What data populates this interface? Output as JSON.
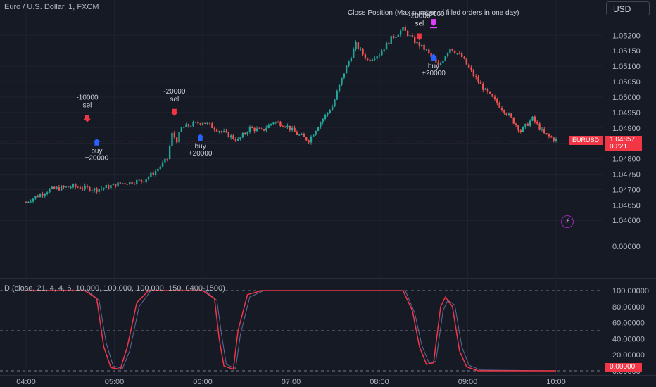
{
  "header": {
    "symbol_title": "Euro / U.S. Dollar, 1, FXCM"
  },
  "currency": "USD",
  "annotation": "Close Position (Max number of filled orders in one day)",
  "current_price": {
    "symbol": "EURUSD",
    "price": "1.04857",
    "countdown": "00:21"
  },
  "indicator": {
    "legend": "D (close, 21, 4, 4, 6, 10,000, 100,000, 100,000, 150, 0400-1500)",
    "current_value": "0.00000"
  },
  "middle_pane": {
    "label": "0.00000"
  },
  "colors": {
    "background": "#161a25",
    "up_candle": "#26a69a",
    "down_candle": "#ef5350",
    "sell_marker": "#f23645",
    "buy_marker": "#2962ff",
    "close_marker": "#e040fb",
    "osc_main": "#f23645",
    "osc_signal": "#5b6b9a"
  },
  "chart_data": [
    {
      "type": "candlestick",
      "x_ticks": [
        "04:00",
        "05:00",
        "06:00",
        "07:00",
        "08:00",
        "09:00",
        "10:00"
      ],
      "y_ticks": [
        "1.04600",
        "1.04650",
        "1.04700",
        "1.04750",
        "1.04800",
        "1.04850",
        "1.04900",
        "1.04950",
        "1.05000",
        "1.05050",
        "1.05100",
        "1.05150",
        "1.05200"
      ],
      "ylim": [
        1.0458,
        1.0526
      ],
      "close_path": [
        [
          0,
          1.0466
        ],
        [
          10,
          1.047
        ],
        [
          20,
          1.0471
        ],
        [
          30,
          1.047
        ],
        [
          40,
          1.0472
        ],
        [
          50,
          1.0473
        ],
        [
          55,
          1.0476
        ],
        [
          60,
          1.048
        ],
        [
          62,
          1.0488
        ],
        [
          64,
          1.0486
        ],
        [
          66,
          1.049
        ],
        [
          70,
          1.0491
        ],
        [
          75,
          1.0492
        ],
        [
          80,
          1.049
        ],
        [
          85,
          1.0488
        ],
        [
          90,
          1.0486
        ],
        [
          95,
          1.049
        ],
        [
          100,
          1.0489
        ],
        [
          105,
          1.0492
        ],
        [
          110,
          1.0491
        ],
        [
          115,
          1.0488
        ],
        [
          120,
          1.0486
        ],
        [
          125,
          1.0492
        ],
        [
          130,
          1.0497
        ],
        [
          135,
          1.0508
        ],
        [
          140,
          1.0517
        ],
        [
          145,
          1.0512
        ],
        [
          150,
          1.0514
        ],
        [
          155,
          1.0519
        ],
        [
          160,
          1.0522
        ],
        [
          165,
          1.0518
        ],
        [
          170,
          1.0515
        ],
        [
          175,
          1.051
        ],
        [
          180,
          1.0516
        ],
        [
          185,
          1.0513
        ],
        [
          190,
          1.0507
        ],
        [
          195,
          1.0502
        ],
        [
          200,
          1.0498
        ],
        [
          205,
          1.0494
        ],
        [
          210,
          1.0489
        ],
        [
          215,
          1.0493
        ],
        [
          220,
          1.0488
        ],
        [
          225,
          1.0486
        ]
      ],
      "trades": [
        {
          "minute": 26,
          "price": 1.04905,
          "side": "sell",
          "qty": "-10000",
          "label": "sel"
        },
        {
          "minute": 30,
          "price": 1.04875,
          "side": "buy",
          "qty": "+20000",
          "label": "buy"
        },
        {
          "minute": 63,
          "price": 1.04925,
          "side": "sell",
          "qty": "-20000",
          "label": "sel"
        },
        {
          "minute": 74,
          "price": 1.0489,
          "side": "buy",
          "qty": "+20000",
          "label": "buy"
        },
        {
          "minute": 167,
          "price": 1.0517,
          "side": "sell",
          "qty": "-20000",
          "label": "sel"
        },
        {
          "minute": 173,
          "price": 1.0515,
          "side": "buy",
          "qty": "+20000",
          "label": "buy"
        },
        {
          "minute": 173,
          "price": 1.0523,
          "side": "close",
          "qty": "-10000",
          "label": ""
        }
      ],
      "current_price": 1.04857
    },
    {
      "type": "line",
      "y_ticks": [
        "100.00000",
        "80.00000",
        "60.00000",
        "40.00000",
        "20.00000",
        "0.00000"
      ],
      "ylim": [
        0,
        100
      ],
      "dashed_levels": [
        100,
        50,
        0
      ],
      "series": [
        {
          "points": [
            [
              0,
              100
            ],
            [
              25,
              100
            ],
            [
              30,
              90
            ],
            [
              33,
              30
            ],
            [
              36,
              4
            ],
            [
              40,
              2
            ],
            [
              43,
              30
            ],
            [
              47,
              85
            ],
            [
              52,
              100
            ],
            [
              75,
              100
            ],
            [
              80,
              90
            ],
            [
              82,
              40
            ],
            [
              84,
              6
            ],
            [
              88,
              2
            ],
            [
              90,
              50
            ],
            [
              94,
              95
            ],
            [
              100,
              100
            ],
            [
              160,
              100
            ],
            [
              164,
              75
            ],
            [
              167,
              30
            ],
            [
              170,
              8
            ],
            [
              173,
              10
            ],
            [
              176,
              80
            ],
            [
              178,
              92
            ],
            [
              181,
              80
            ],
            [
              184,
              25
            ],
            [
              187,
              5
            ],
            [
              192,
              0
            ],
            [
              225,
              0
            ]
          ]
        },
        {
          "points": [
            [
              0,
              100
            ],
            [
              26,
              100
            ],
            [
              31,
              88
            ],
            [
              34,
              35
            ],
            [
              37,
              6
            ],
            [
              41,
              3
            ],
            [
              44,
              25
            ],
            [
              48,
              80
            ],
            [
              53,
              100
            ],
            [
              76,
              100
            ],
            [
              81,
              88
            ],
            [
              83,
              45
            ],
            [
              85,
              8
            ],
            [
              89,
              3
            ],
            [
              91,
              45
            ],
            [
              95,
              92
            ],
            [
              101,
              100
            ],
            [
              161,
              100
            ],
            [
              165,
              72
            ],
            [
              168,
              32
            ],
            [
              171,
              10
            ],
            [
              174,
              12
            ],
            [
              177,
              75
            ],
            [
              179,
              88
            ],
            [
              182,
              82
            ],
            [
              185,
              30
            ],
            [
              188,
              7
            ],
            [
              193,
              1
            ],
            [
              225,
              0
            ]
          ]
        }
      ]
    }
  ]
}
